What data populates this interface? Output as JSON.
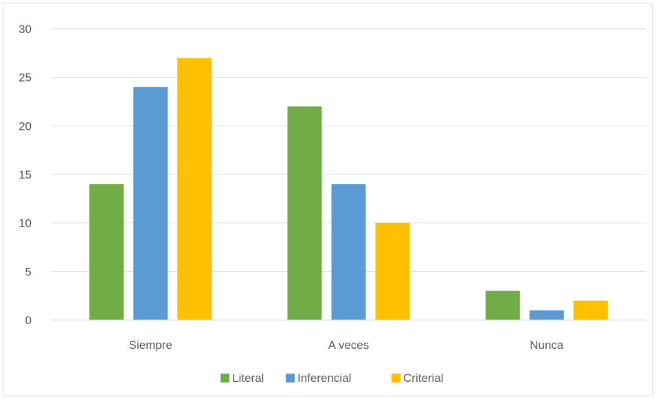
{
  "chart_data": {
    "type": "bar",
    "categories": [
      "Siempre",
      "A veces",
      "Nunca"
    ],
    "series": [
      {
        "name": "Literal",
        "values": [
          14,
          22,
          3
        ],
        "color": "#70ad47"
      },
      {
        "name": "Inferencial",
        "values": [
          24,
          14,
          1
        ],
        "color": "#5b9bd5"
      },
      {
        "name": "Criterial",
        "values": [
          27,
          10,
          2
        ],
        "color": "#ffc000"
      }
    ],
    "title": "",
    "xlabel": "",
    "ylabel": "",
    "ylim": [
      0,
      30
    ],
    "yticks": [
      0,
      5,
      10,
      15,
      20,
      25,
      30
    ],
    "grid": true,
    "legend_position": "bottom"
  }
}
